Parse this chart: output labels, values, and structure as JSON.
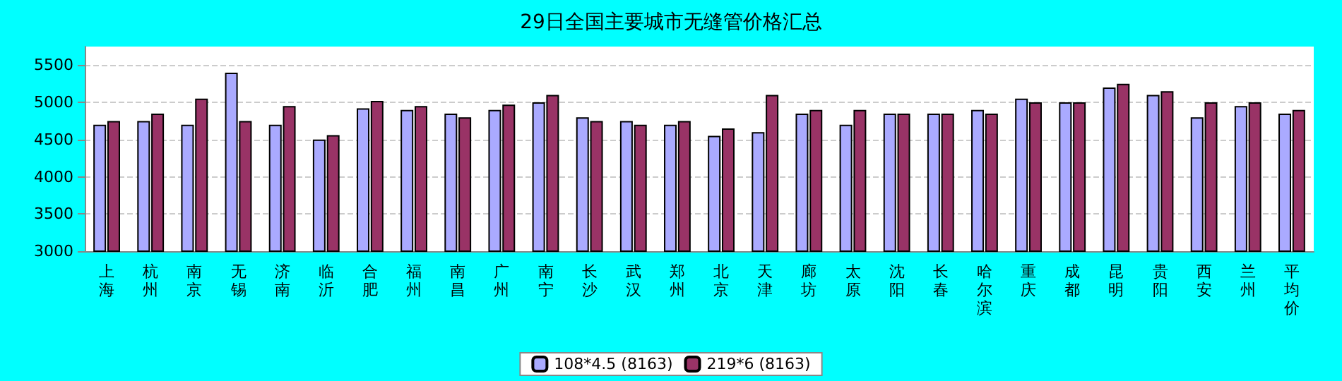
{
  "chart_data": {
    "type": "bar",
    "title": "29日全国主要城市无缝管价格汇总",
    "categories": [
      "上海",
      "杭州",
      "南京",
      "无锡",
      "济南",
      "临沂",
      "合肥",
      "福州",
      "南昌",
      "广州",
      "南宁",
      "长沙",
      "武汉",
      "郑州",
      "北京",
      "天津",
      "廊坊",
      "太原",
      "沈阳",
      "长春",
      "哈尔滨",
      "重庆",
      "成都",
      "昆明",
      "贵阳",
      "西安",
      "兰州",
      "平均价"
    ],
    "series": [
      {
        "name": "108*4.5 (8163)",
        "color": "#aaaaff",
        "values": [
          4700,
          4750,
          4700,
          5400,
          4700,
          4500,
          4920,
          4900,
          4850,
          4900,
          5000,
          4800,
          4750,
          4700,
          4550,
          4600,
          4850,
          4700,
          4850,
          4850,
          4900,
          5050,
          5000,
          5200,
          5100,
          4800,
          4950,
          4850
        ]
      },
      {
        "name": "219*6 (8163)",
        "color": "#993366",
        "values": [
          4750,
          4850,
          5050,
          4750,
          4950,
          4560,
          5020,
          4950,
          4800,
          4970,
          5100,
          4750,
          4700,
          4750,
          4650,
          5100,
          4900,
          4900,
          4850,
          4850,
          4850,
          5000,
          5000,
          5250,
          5150,
          5000,
          5000,
          4900
        ]
      }
    ],
    "ylim": [
      3000,
      5750
    ],
    "yticks": [
      3000,
      3500,
      4000,
      4500,
      5000,
      5500
    ],
    "grid": "y",
    "legend": "bottom"
  }
}
